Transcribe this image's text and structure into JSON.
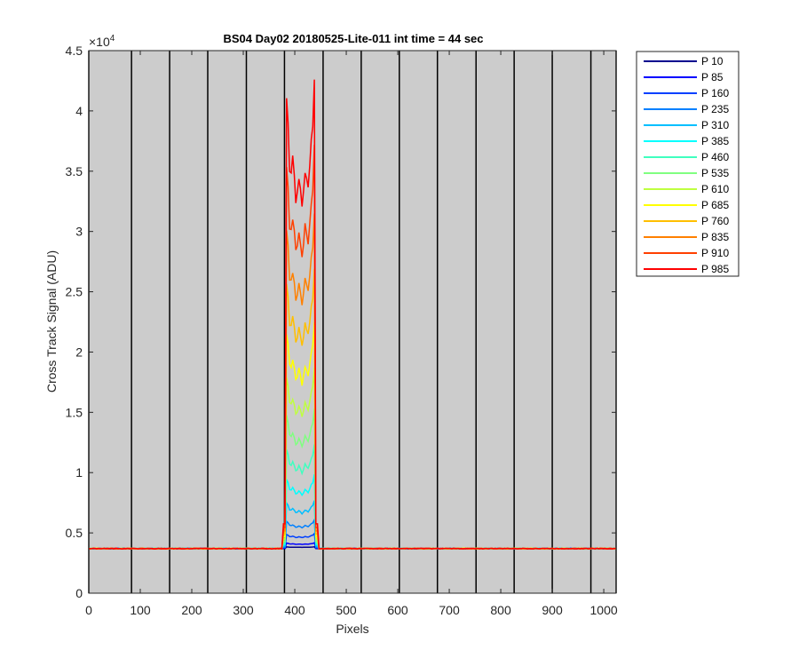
{
  "chart_data": {
    "type": "line",
    "title": "BS04 Day02 20180525-Lite-011 int time = 44 sec",
    "xlabel": "Pixels",
    "ylabel": "Cross Track Signal (ADU)",
    "y_exponent_label": "×10",
    "y_exponent_power": "4",
    "xlim": [
      0,
      1024
    ],
    "ylim": [
      0,
      45000
    ],
    "x_ticks": [
      0,
      100,
      200,
      300,
      400,
      500,
      600,
      700,
      800,
      900,
      1000
    ],
    "x_tick_labels": [
      "0",
      "100",
      "200",
      "300",
      "400",
      "500",
      "600",
      "700",
      "800",
      "900",
      "1000"
    ],
    "y_ticks": [
      0,
      5000,
      10000,
      15000,
      20000,
      25000,
      30000,
      35000,
      40000,
      45000
    ],
    "y_tick_labels": [
      "0",
      "0.5",
      "1",
      "1.5",
      "2",
      "2.5",
      "3",
      "3.5",
      "4",
      "4.5"
    ],
    "plot_background": "#cccccc",
    "legend_placement": "outside-top-right",
    "baseline": 3700,
    "signal_region": [
      382,
      440
    ],
    "vertical_lines_x": [
      0,
      83,
      157,
      231,
      306,
      380,
      455,
      529,
      603,
      677,
      752,
      826,
      900,
      975,
      1024
    ],
    "series": [
      {
        "name": "P 10",
        "color": "#00008f",
        "peak": 3850
      },
      {
        "name": "P 85",
        "color": "#0000ff",
        "peak": 4200
      },
      {
        "name": "P 160",
        "color": "#0040ff",
        "peak": 5000
      },
      {
        "name": "P 235",
        "color": "#0080ff",
        "peak": 6200
      },
      {
        "name": "P 310",
        "color": "#00bfff",
        "peak": 7900
      },
      {
        "name": "P 385",
        "color": "#00ffff",
        "peak": 10100
      },
      {
        "name": "P 460",
        "color": "#40ffbf",
        "peak": 12800
      },
      {
        "name": "P 535",
        "color": "#80ff80",
        "peak": 15900
      },
      {
        "name": "P 610",
        "color": "#bfff40",
        "peak": 19500
      },
      {
        "name": "P 685",
        "color": "#ffff00",
        "peak": 23500
      },
      {
        "name": "P 760",
        "color": "#ffbf00",
        "peak": 28000
      },
      {
        "name": "P 835",
        "color": "#ff8000",
        "peak": 33000
      },
      {
        "name": "P 910",
        "color": "#ff4000",
        "peak": 38600
      },
      {
        "name": "P 985",
        "color": "#ff0000",
        "peak": 44800
      }
    ]
  }
}
